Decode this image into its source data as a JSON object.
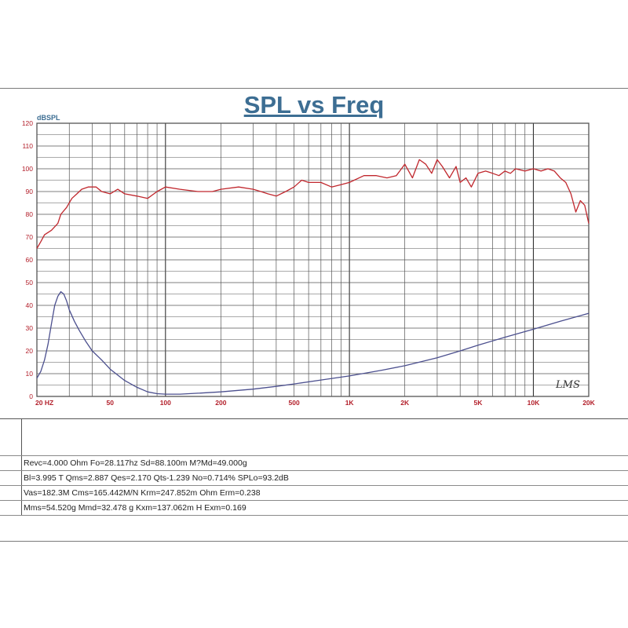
{
  "chart_data": {
    "type": "line",
    "title": "SPL vs Freq",
    "ylabel": "dBSPL",
    "x_scale": "log",
    "xlim": [
      20,
      20000
    ],
    "ylim": [
      0,
      120
    ],
    "grid": true,
    "y_ticks": [
      "120",
      "110",
      "100",
      "90",
      "80",
      "70",
      "60",
      "50",
      "40",
      "30",
      "20",
      "10",
      "0"
    ],
    "x_tick_labels": [
      {
        "f": 20,
        "label": "20 HZ"
      },
      {
        "f": 50,
        "label": "50"
      },
      {
        "f": 100,
        "label": "100"
      },
      {
        "f": 200,
        "label": "200"
      },
      {
        "f": 500,
        "label": "500"
      },
      {
        "f": 1000,
        "label": "1K"
      },
      {
        "f": 2000,
        "label": "2K"
      },
      {
        "f": 5000,
        "label": "5K"
      },
      {
        "f": 10000,
        "label": "10K"
      },
      {
        "f": 20000,
        "label": "20K"
      }
    ],
    "watermark": "LMS",
    "series": [
      {
        "color": "#c0272d",
        "points": [
          [
            20,
            65
          ],
          [
            21,
            68
          ],
          [
            22,
            71
          ],
          [
            24,
            73
          ],
          [
            26,
            76
          ],
          [
            27,
            80
          ],
          [
            29,
            83
          ],
          [
            31,
            87
          ],
          [
            33,
            89
          ],
          [
            35,
            91
          ],
          [
            38,
            92
          ],
          [
            42,
            92
          ],
          [
            45,
            90
          ],
          [
            50,
            89
          ],
          [
            55,
            91
          ],
          [
            60,
            89
          ],
          [
            70,
            88
          ],
          [
            80,
            87
          ],
          [
            90,
            90
          ],
          [
            100,
            92
          ],
          [
            120,
            91
          ],
          [
            150,
            90
          ],
          [
            180,
            90
          ],
          [
            200,
            91
          ],
          [
            250,
            92
          ],
          [
            300,
            91
          ],
          [
            330,
            90
          ],
          [
            360,
            89
          ],
          [
            400,
            88
          ],
          [
            450,
            90
          ],
          [
            500,
            92
          ],
          [
            550,
            95
          ],
          [
            600,
            94
          ],
          [
            700,
            94
          ],
          [
            800,
            92
          ],
          [
            900,
            93
          ],
          [
            1000,
            94
          ],
          [
            1200,
            97
          ],
          [
            1400,
            97
          ],
          [
            1600,
            96
          ],
          [
            1800,
            97
          ],
          [
            2000,
            102
          ],
          [
            2200,
            96
          ],
          [
            2400,
            104
          ],
          [
            2600,
            102
          ],
          [
            2800,
            98
          ],
          [
            3000,
            104
          ],
          [
            3200,
            101
          ],
          [
            3500,
            96
          ],
          [
            3800,
            101
          ],
          [
            4000,
            94
          ],
          [
            4300,
            96
          ],
          [
            4600,
            92
          ],
          [
            5000,
            98
          ],
          [
            5500,
            99
          ],
          [
            6000,
            98
          ],
          [
            6500,
            97
          ],
          [
            7000,
            99
          ],
          [
            7500,
            98
          ],
          [
            8000,
            100
          ],
          [
            9000,
            99
          ],
          [
            10000,
            100
          ],
          [
            11000,
            99
          ],
          [
            12000,
            100
          ],
          [
            13000,
            99
          ],
          [
            14000,
            96
          ],
          [
            15000,
            94
          ],
          [
            16000,
            89
          ],
          [
            17000,
            81
          ],
          [
            18000,
            86
          ],
          [
            19000,
            84
          ],
          [
            20000,
            76
          ]
        ]
      },
      {
        "color": "#4b4f8e",
        "points": [
          [
            20,
            8
          ],
          [
            21,
            11
          ],
          [
            22,
            16
          ],
          [
            23,
            23
          ],
          [
            24,
            32
          ],
          [
            25,
            40
          ],
          [
            26,
            44
          ],
          [
            27,
            46
          ],
          [
            28,
            45
          ],
          [
            29,
            42
          ],
          [
            30,
            38
          ],
          [
            32,
            33
          ],
          [
            34,
            29
          ],
          [
            37,
            24
          ],
          [
            40,
            20
          ],
          [
            45,
            16
          ],
          [
            50,
            12
          ],
          [
            60,
            7
          ],
          [
            70,
            4
          ],
          [
            80,
            2
          ],
          [
            90,
            1.2
          ],
          [
            100,
            1
          ],
          [
            120,
            1
          ],
          [
            150,
            1.4
          ],
          [
            200,
            2
          ],
          [
            300,
            3.2
          ],
          [
            400,
            4.4
          ],
          [
            500,
            5.5
          ],
          [
            700,
            7.2
          ],
          [
            1000,
            9
          ],
          [
            1500,
            11.5
          ],
          [
            2000,
            13.5
          ],
          [
            3000,
            17
          ],
          [
            4000,
            20
          ],
          [
            5000,
            22.5
          ],
          [
            7000,
            26
          ],
          [
            10000,
            29.5
          ],
          [
            14000,
            33
          ],
          [
            20000,
            36.5
          ]
        ]
      }
    ]
  },
  "param_rows": [
    "Revc=4.000 Ohm Fo=28.117hz Sd=88.100m M?Md=49.000g",
    "Bl=3.995 T Qms=2.887 Qes=2.170 Qts-1.239 No=0.714% SPLo=93.2dB",
    "Vas=182.3M Cms=165.442M/N Krm=247.852m Ohm Erm=0.238",
    "Mms=54.520g Mmd=32.478 g Kxm=137.062m H Exm=0.169"
  ]
}
